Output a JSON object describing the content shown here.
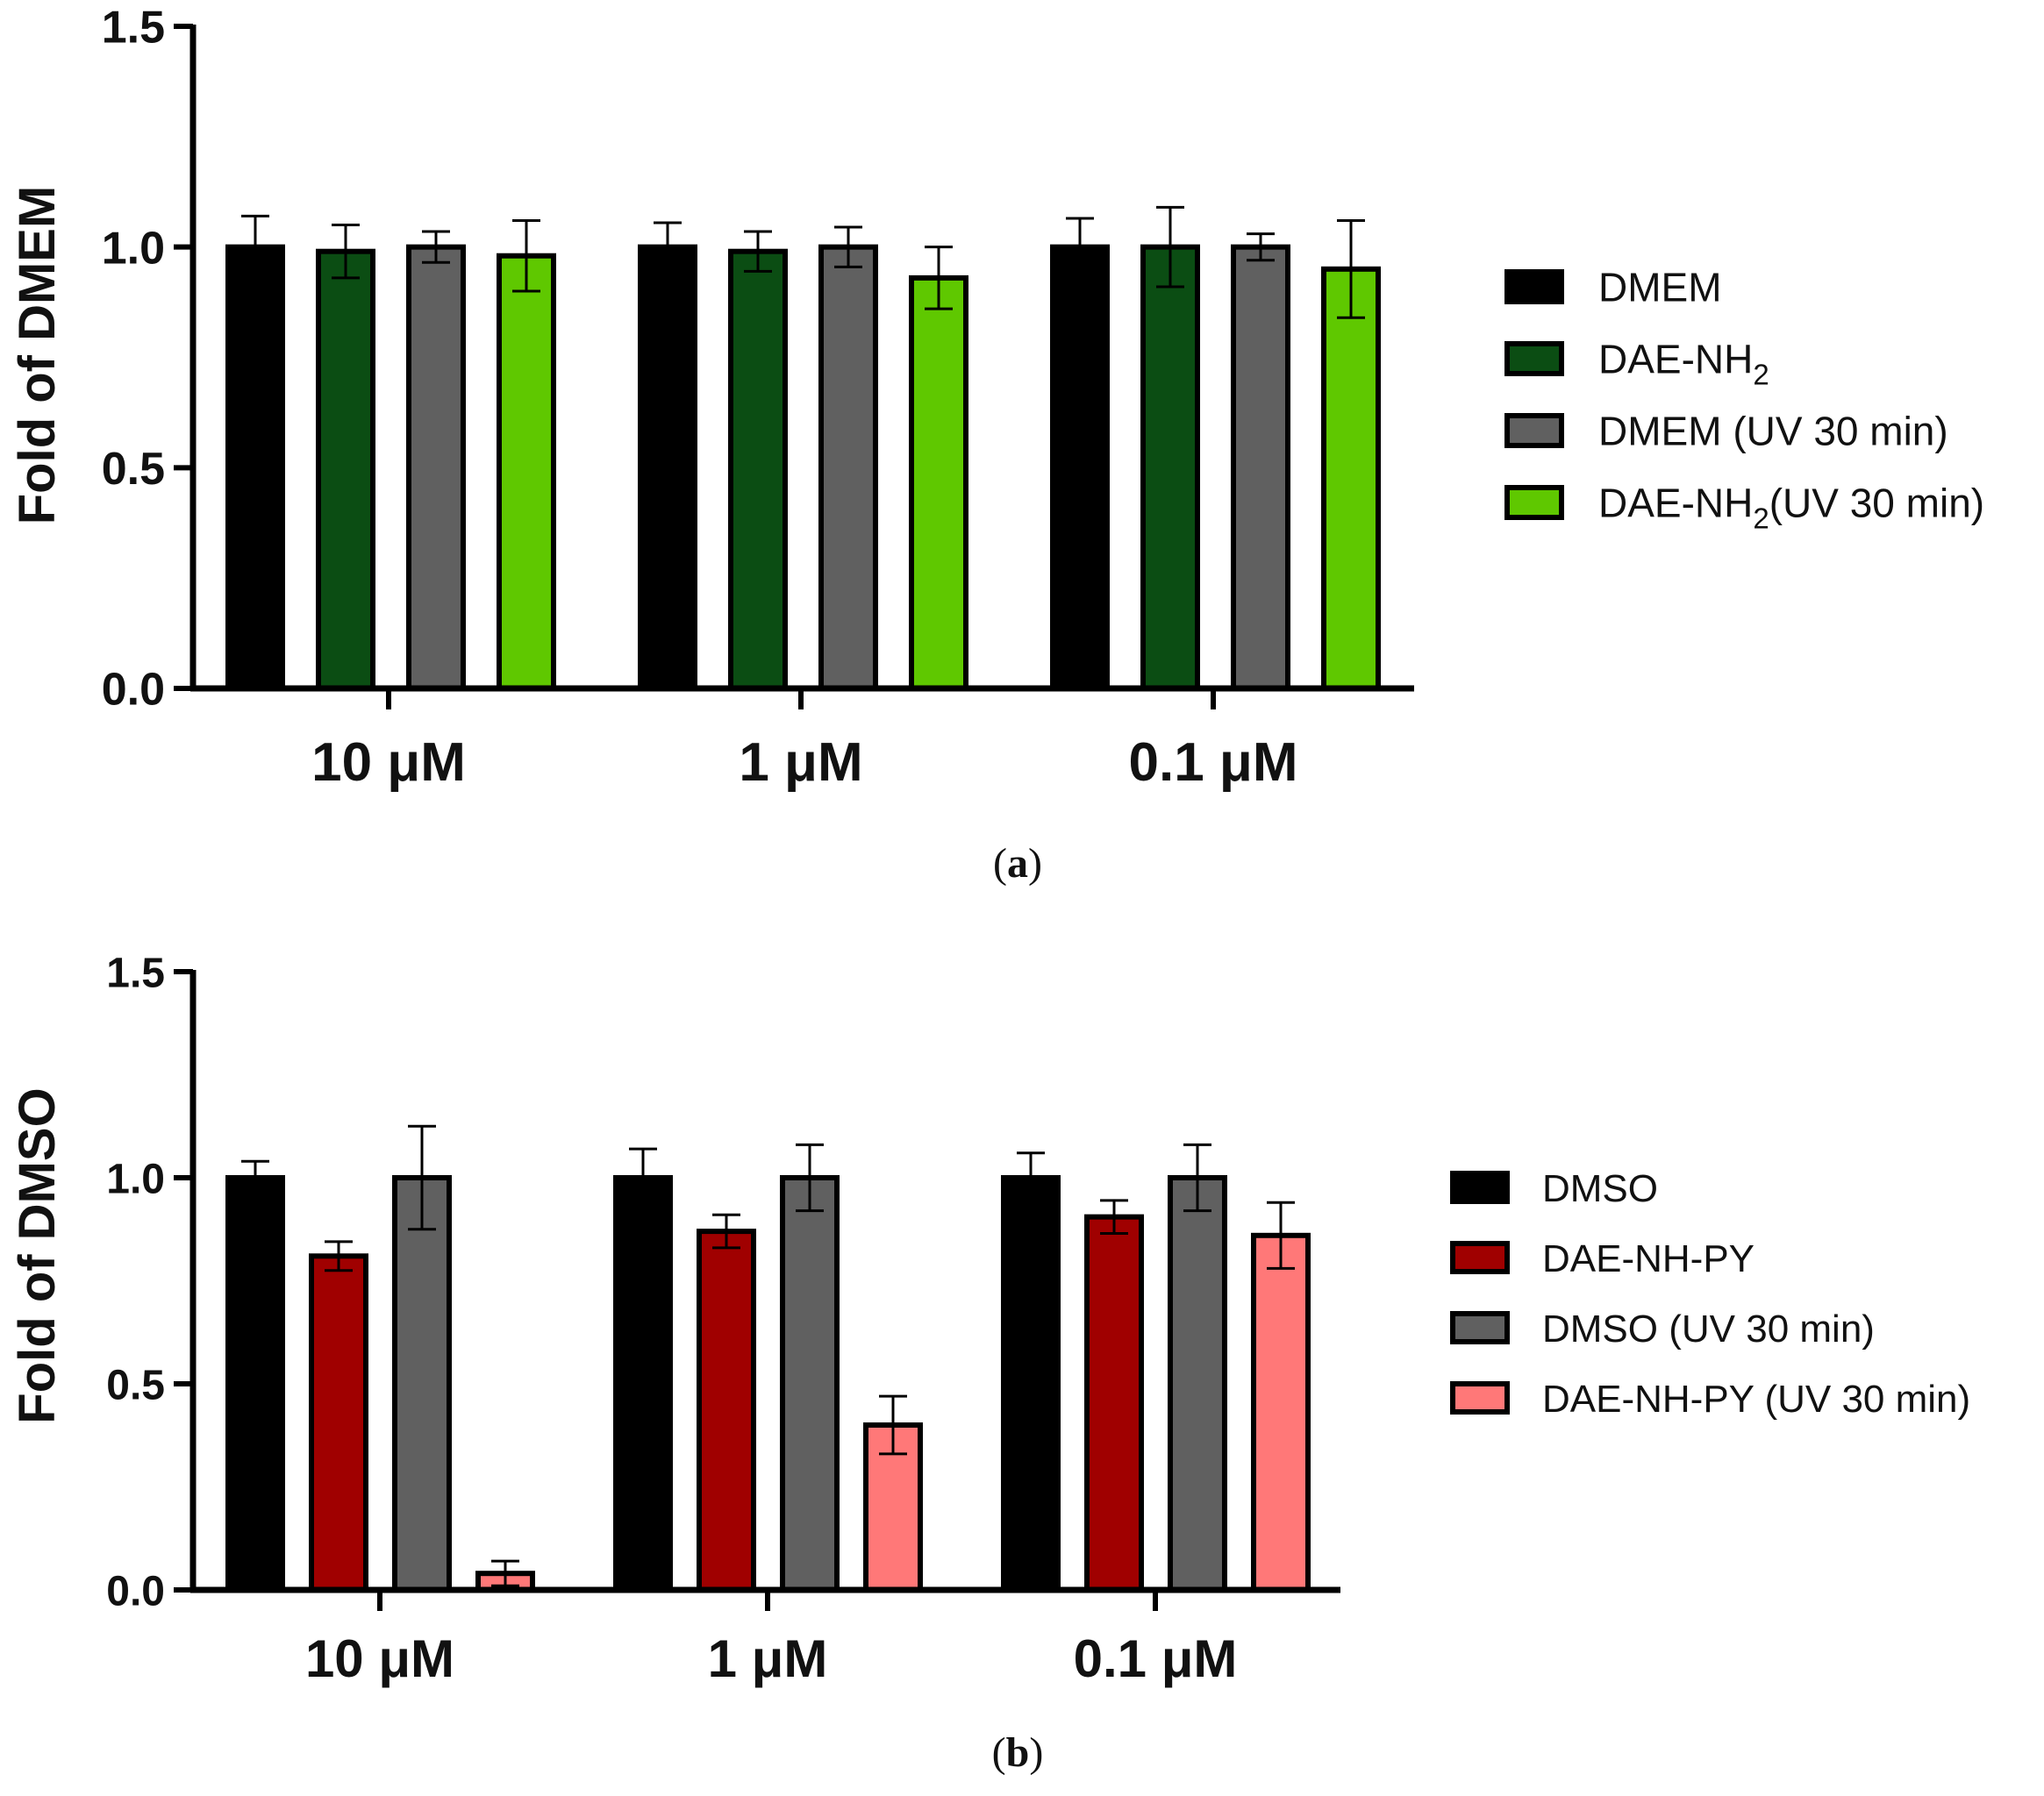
{
  "chart_data": [
    {
      "panel": "a",
      "type": "bar",
      "categories": [
        "10 μM",
        "1 μM",
        "0.1 μM"
      ],
      "ylabel": "Fold of DMEM",
      "ylim": [
        0,
        1.5
      ],
      "yticks": [
        "0.0",
        "0.5",
        "1.0",
        "1.5"
      ],
      "caption": "a",
      "series": [
        {
          "name": "DMEM",
          "sub": "",
          "suffix": "",
          "color": "#000000",
          "values": [
            1.0,
            1.0,
            1.0
          ],
          "errors": [
            0.07,
            0.055,
            0.065
          ]
        },
        {
          "name": "DAE-NH",
          "sub": "2",
          "suffix": "",
          "color": "#0b4d13",
          "values": [
            0.99,
            0.99,
            1.0
          ],
          "errors": [
            0.06,
            0.045,
            0.09
          ]
        },
        {
          "name": "DMEM (UV 30 min)",
          "sub": "",
          "suffix": "",
          "color": "#606060",
          "values": [
            1.0,
            1.0,
            1.0
          ],
          "errors": [
            0.035,
            0.045,
            0.03
          ]
        },
        {
          "name": "DAE-NH",
          "sub": "2",
          "suffix": "(UV 30 min)",
          "color": "#5fc800",
          "values": [
            0.98,
            0.93,
            0.95
          ],
          "errors": [
            0.08,
            0.07,
            0.11
          ]
        }
      ]
    },
    {
      "panel": "b",
      "type": "bar",
      "categories": [
        "10 μM",
        "1 μM",
        "0.1 μM"
      ],
      "ylabel": "Fold of DMSO",
      "ylim": [
        0,
        1.5
      ],
      "yticks": [
        "0.0",
        "0.5",
        "1.0",
        "1.5"
      ],
      "caption": "b",
      "series": [
        {
          "name": "DMSO",
          "sub": "",
          "suffix": "",
          "color": "#000000",
          "values": [
            1.0,
            1.0,
            1.0
          ],
          "errors": [
            0.04,
            0.07,
            0.06
          ]
        },
        {
          "name": "DAE-NH-PY",
          "sub": "",
          "suffix": "",
          "color": "#a00000",
          "values": [
            0.81,
            0.87,
            0.905
          ],
          "errors": [
            0.035,
            0.04,
            0.04
          ]
        },
        {
          "name": "DMSO (UV 30 min)",
          "sub": "",
          "suffix": "",
          "color": "#606060",
          "values": [
            1.0,
            1.0,
            1.0
          ],
          "errors": [
            0.125,
            0.08,
            0.08
          ]
        },
        {
          "name": "DAE-NH-PY (UV 30 min)",
          "sub": "",
          "suffix": "",
          "color": "#ff7878",
          "values": [
            0.04,
            0.4,
            0.86
          ],
          "errors": [
            0.03,
            0.07,
            0.08
          ]
        }
      ]
    }
  ]
}
